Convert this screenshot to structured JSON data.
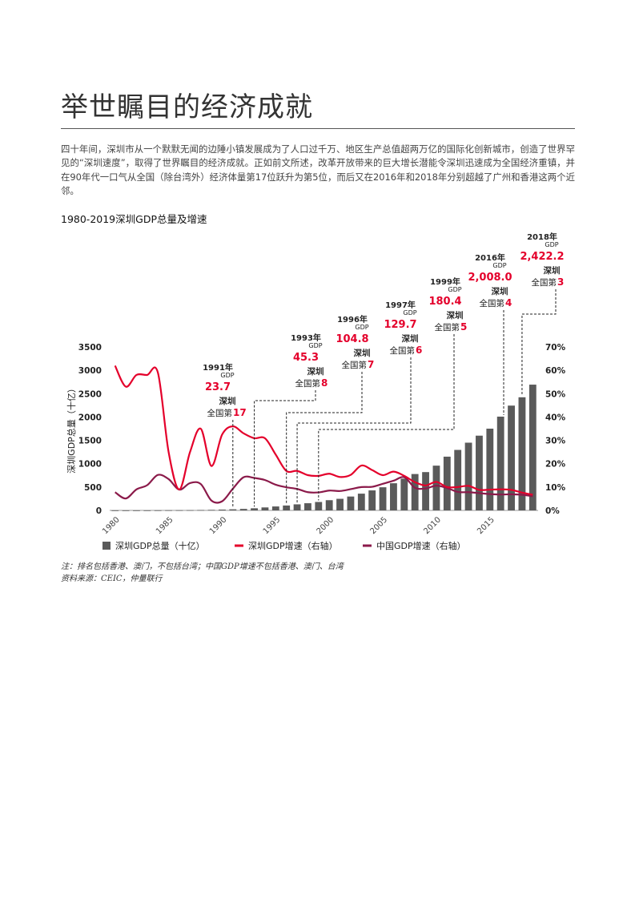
{
  "page": {
    "title": "举世瞩目的经济成就",
    "paragraph": "四十年间，深圳市从一个默默无闻的边陲小镇发展成为了人口过千万、地区生产总值超两万亿的国际化创新城市，创造了世界罕见的“深圳速度”，取得了世界瞩目的经济成就。正如前文所述，改革开放带来的巨大增长潜能令深圳迅速成为全国经济重镇，并在90年代一口气从全国（除台湾外）经济体量第17位跃升为第5位，而后又在2016年和2018年分别超越了广州和香港这两个近邻。",
    "note": "注：排名包括香港、澳门，不包括台湾；中国GDP增速不包括香港、澳门、台湾",
    "source": "资料来源：CEIC，仲量联行"
  },
  "chart_data": {
    "type": "bar+line",
    "title": "1980-2019深圳GDP总量及增速",
    "ylabel": "深圳GDP总量（十亿）",
    "ylim": [
      0,
      3500
    ],
    "y2lim": [
      0,
      70
    ],
    "yticks": [
      "3500",
      "3000",
      "2500",
      "2000",
      "1500",
      "1000",
      "500",
      "0"
    ],
    "y2ticks": [
      "70%",
      "60%",
      "50%",
      "40%",
      "30%",
      "20%",
      "10%",
      "0%"
    ],
    "xticks": [
      "1980",
      "1985",
      "1990",
      "1995",
      "2000",
      "2005",
      "2010",
      "2015"
    ],
    "colors": {
      "bar": "#5a5a5a",
      "shenzhen_growth": "#e4002b",
      "china_growth": "#8b1a4a"
    },
    "years": [
      1980,
      1981,
      1982,
      1983,
      1984,
      1985,
      1986,
      1987,
      1988,
      1989,
      1990,
      1991,
      1992,
      1993,
      1994,
      1995,
      1996,
      1997,
      1998,
      1999,
      2000,
      2001,
      2002,
      2003,
      2004,
      2005,
      2006,
      2007,
      2008,
      2009,
      2010,
      2011,
      2012,
      2013,
      2014,
      2015,
      2016,
      2017,
      2018,
      2019
    ],
    "series": [
      {
        "name": "深圳GDP总量（十亿）",
        "axis": "left",
        "values": [
          0.3,
          0.5,
          0.8,
          1.3,
          2.3,
          3.9,
          4.2,
          5.6,
          8.7,
          11.6,
          17.2,
          23.7,
          31.7,
          45.3,
          63.5,
          84.2,
          104.8,
          129.7,
          153.5,
          180.4,
          218.7,
          248.2,
          296.9,
          358.6,
          428.2,
          495.1,
          581.4,
          680.2,
          778.7,
          820.1,
          958.2,
          1150.6,
          1295.0,
          1450.0,
          1600.2,
          1750.3,
          2008.0,
          2243.8,
          2422.2,
          2692.7
        ]
      },
      {
        "name": "深圳GDP增速（右轴）",
        "axis": "right",
        "values": [
          62.0,
          53.0,
          58.0,
          58.0,
          59.0,
          25.0,
          9.0,
          25.0,
          35.0,
          19.0,
          32.5,
          36.0,
          33.0,
          30.9,
          30.9,
          23.9,
          16.9,
          16.9,
          15.1,
          14.8,
          15.7,
          14.3,
          15.2,
          19.2,
          17.3,
          15.1,
          16.6,
          14.8,
          12.1,
          10.7,
          12.2,
          10.0,
          10.0,
          10.5,
          8.8,
          8.9,
          9.0,
          8.8,
          7.6,
          6.7
        ]
      },
      {
        "name": "中国GDP增速（右轴）",
        "axis": "right",
        "values": [
          7.8,
          5.1,
          9.0,
          10.8,
          15.2,
          13.4,
          8.9,
          11.7,
          11.3,
          4.2,
          3.9,
          9.3,
          14.2,
          13.9,
          13.0,
          11.0,
          9.9,
          9.2,
          7.8,
          7.7,
          8.5,
          8.3,
          9.1,
          10.0,
          10.1,
          11.4,
          12.7,
          14.2,
          9.7,
          9.4,
          10.6,
          9.6,
          7.9,
          7.8,
          7.4,
          7.0,
          6.8,
          6.9,
          6.7,
          6.1
        ]
      }
    ],
    "annotations": [
      {
        "year": "1991年",
        "gdp": "GDP",
        "value": "23.7",
        "city": "深圳",
        "rank_prefix": "全国第",
        "rank": "17"
      },
      {
        "year": "1993年",
        "gdp": "GDP",
        "value": "45.3",
        "city": "深圳",
        "rank_prefix": "全国第",
        "rank": "8"
      },
      {
        "year": "1996年",
        "gdp": "GDP",
        "value": "104.8",
        "city": "深圳",
        "rank_prefix": "全国第",
        "rank": "7"
      },
      {
        "year": "1997年",
        "gdp": "GDP",
        "value": "129.7",
        "city": "深圳",
        "rank_prefix": "全国第",
        "rank": "6"
      },
      {
        "year": "1999年",
        "gdp": "GDP",
        "value": "180.4",
        "city": "深圳",
        "rank_prefix": "全国第",
        "rank": "5"
      },
      {
        "year": "2016年",
        "gdp": "GDP",
        "value": "2,008.0",
        "city": "深圳",
        "rank_prefix": "全国第",
        "rank": "4"
      },
      {
        "year": "2018年",
        "gdp": "GDP",
        "value": "2,422.2",
        "city": "深圳",
        "rank_prefix": "全国第",
        "rank": "3"
      }
    ],
    "legend": [
      "深圳GDP总量（十亿）",
      "深圳GDP增速（右轴）",
      "中国GDP增速（右轴）"
    ]
  }
}
